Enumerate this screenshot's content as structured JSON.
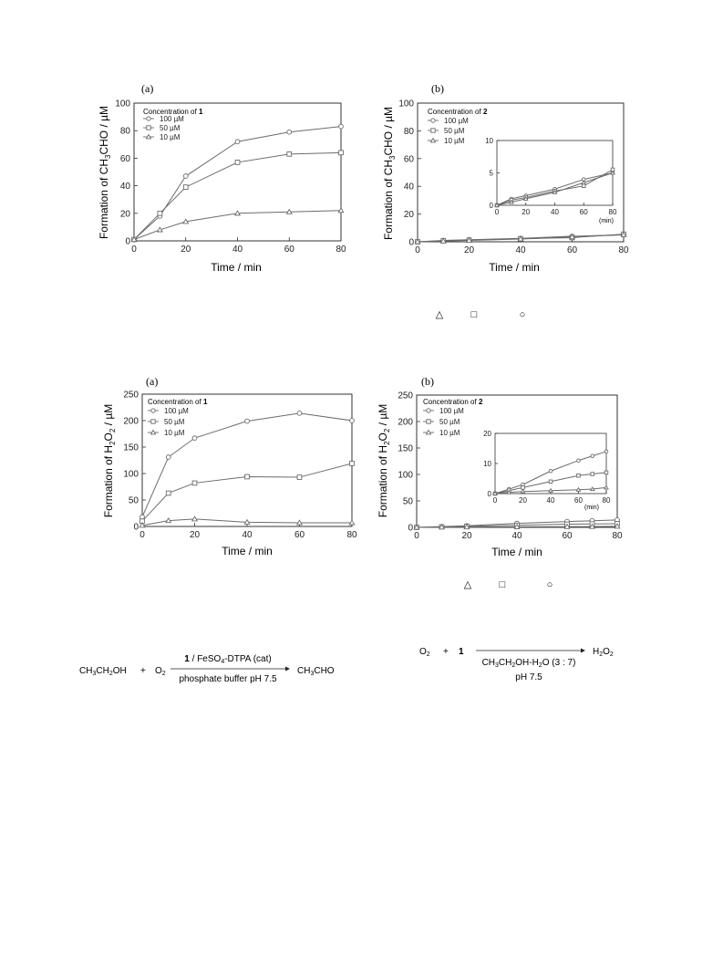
{
  "chart_data": [
    {
      "type": "line",
      "panel": "(a)",
      "xlabel": "Time / min",
      "ylabel_parts": [
        "Formation of CH",
        "3",
        "CHO / µM"
      ],
      "xlim": [
        0,
        80
      ],
      "ylim": [
        0,
        100
      ],
      "xticks": [
        0,
        20,
        40,
        60,
        80
      ],
      "yticks": [
        0,
        20,
        40,
        60,
        80,
        100
      ],
      "legend_title_parts": [
        "Concentration of ",
        "1"
      ],
      "legend_position": "top-left",
      "grid": false,
      "series": [
        {
          "name": "100 µM",
          "marker": "circle",
          "x": [
            0,
            10,
            20,
            40,
            60,
            80
          ],
          "y": [
            1,
            18,
            47,
            72,
            79,
            83
          ]
        },
        {
          "name": "50 µM",
          "marker": "square",
          "x": [
            0,
            10,
            20,
            40,
            60,
            80
          ],
          "y": [
            1,
            20,
            39,
            57,
            63,
            64
          ]
        },
        {
          "name": "10 µM",
          "marker": "triangle",
          "x": [
            0,
            10,
            20,
            40,
            60,
            80
          ],
          "y": [
            1,
            8,
            14,
            20,
            21,
            22
          ]
        }
      ]
    },
    {
      "type": "line",
      "panel": "(b)",
      "xlabel": "Time / min",
      "ylabel_parts": [
        "Formation of CH",
        "3",
        "CHO / µM"
      ],
      "xlim": [
        0,
        80
      ],
      "ylim": [
        0,
        100
      ],
      "xticks": [
        0,
        20,
        40,
        60,
        80
      ],
      "yticks": [
        0,
        20,
        40,
        60,
        80,
        100
      ],
      "legend_title_parts": [
        "Concentration of ",
        "2"
      ],
      "legend_position": "top-left",
      "grid": false,
      "series": [
        {
          "name": "100 µM",
          "marker": "circle",
          "x": [
            0,
            10,
            20,
            40,
            60,
            80
          ],
          "y": [
            0,
            1,
            1.5,
            2.5,
            4,
            5
          ]
        },
        {
          "name": "50 µM",
          "marker": "square",
          "x": [
            0,
            10,
            20,
            40,
            60,
            80
          ],
          "y": [
            0,
            0.8,
            1.2,
            2.2,
            3,
            5.5
          ]
        },
        {
          "name": "10 µM",
          "marker": "triangle",
          "x": [
            0,
            10,
            20,
            40,
            60,
            80
          ],
          "y": [
            0,
            0.5,
            1,
            2,
            3.5,
            5
          ]
        }
      ],
      "inset": {
        "xlim": [
          0,
          80
        ],
        "ylim": [
          0,
          10
        ],
        "xticks": [
          0,
          20,
          40,
          60,
          80
        ],
        "yticks": [
          0,
          5,
          10
        ],
        "unit_label": "(min)"
      }
    },
    {
      "type": "line",
      "panel": "(a)",
      "xlabel": "Time / min",
      "ylabel_parts": [
        "Formation of H",
        "2",
        "O",
        "2",
        " / µM"
      ],
      "xlim": [
        0,
        80
      ],
      "ylim": [
        0,
        250
      ],
      "xticks": [
        0,
        20,
        40,
        60,
        80
      ],
      "yticks": [
        0,
        50,
        100,
        150,
        200,
        250
      ],
      "legend_title_parts": [
        "Concentration of ",
        "1"
      ],
      "legend_position": "top-left",
      "grid": false,
      "series": [
        {
          "name": "100 µM",
          "marker": "circle",
          "x": [
            0,
            10,
            20,
            40,
            60,
            80
          ],
          "y": [
            18,
            131,
            167,
            199,
            214,
            200
          ]
        },
        {
          "name": "50 µM",
          "marker": "square",
          "x": [
            0,
            10,
            20,
            40,
            60,
            80
          ],
          "y": [
            10,
            63,
            82,
            94,
            93,
            119
          ]
        },
        {
          "name": "10 µM",
          "marker": "triangle",
          "x": [
            0,
            10,
            20,
            40,
            60,
            80
          ],
          "y": [
            2,
            11,
            14,
            8,
            7,
            7
          ]
        }
      ]
    },
    {
      "type": "line",
      "panel": "(b)",
      "xlabel": "Time / min",
      "ylabel_parts": [
        "Formation of H",
        "2",
        "O",
        "2",
        " / µM"
      ],
      "xlim": [
        0,
        80
      ],
      "ylim": [
        0,
        250
      ],
      "xticks": [
        0,
        20,
        40,
        60,
        80
      ],
      "yticks": [
        0,
        50,
        100,
        150,
        200,
        250
      ],
      "legend_title_parts": [
        "Concentration of ",
        "2"
      ],
      "legend_position": "top-left",
      "grid": false,
      "series": [
        {
          "name": "100 µM",
          "marker": "circle",
          "x": [
            0,
            10,
            20,
            40,
            60,
            70,
            80
          ],
          "y": [
            0,
            1.5,
            3,
            7.5,
            11,
            12.5,
            14
          ]
        },
        {
          "name": "50 µM",
          "marker": "square",
          "x": [
            0,
            10,
            20,
            40,
            60,
            70,
            80
          ],
          "y": [
            0,
            1,
            2,
            4,
            6,
            6.5,
            7
          ]
        },
        {
          "name": "10 µM",
          "marker": "triangle",
          "x": [
            0,
            10,
            20,
            40,
            60,
            70,
            80
          ],
          "y": [
            0,
            0.4,
            0.7,
            1,
            1.3,
            1.5,
            2
          ]
        }
      ],
      "inset": {
        "xlim": [
          0,
          80
        ],
        "ylim": [
          0,
          20
        ],
        "xticks": [
          0,
          20,
          40,
          60,
          80
        ],
        "yticks": [
          0,
          10,
          20
        ],
        "unit_label": "(min)"
      }
    }
  ],
  "symbol_rows": [
    {
      "triangle": "△",
      "square": "□",
      "circle": "○"
    },
    {
      "triangle": "△",
      "square": "□",
      "circle": "○"
    }
  ],
  "equations": {
    "left": {
      "reactant1_parts": [
        "CH",
        "3",
        "CH",
        "2",
        "OH"
      ],
      "plus": "+",
      "reactant2_parts": [
        "O",
        "2"
      ],
      "above_parts": [
        "1",
        " / FeSO",
        "4",
        "-DTPA (cat)"
      ],
      "below": "phosphate buffer pH 7.5",
      "product_parts": [
        "CH",
        "3",
        "CHO"
      ]
    },
    "right": {
      "reactant1_parts": [
        "O",
        "2"
      ],
      "plus": "+",
      "reactant2": "1",
      "above_parts": [
        "CH",
        "3",
        "CH",
        "2",
        "OH-H",
        "2",
        "O (3 : 7)"
      ],
      "below": "pH 7.5",
      "product_parts": [
        "H",
        "2",
        "O",
        "2"
      ]
    }
  },
  "colors": {
    "axis": "#333333",
    "line": "#6b6b6b",
    "marker_fill": "#ffffff",
    "text": "#222222"
  }
}
